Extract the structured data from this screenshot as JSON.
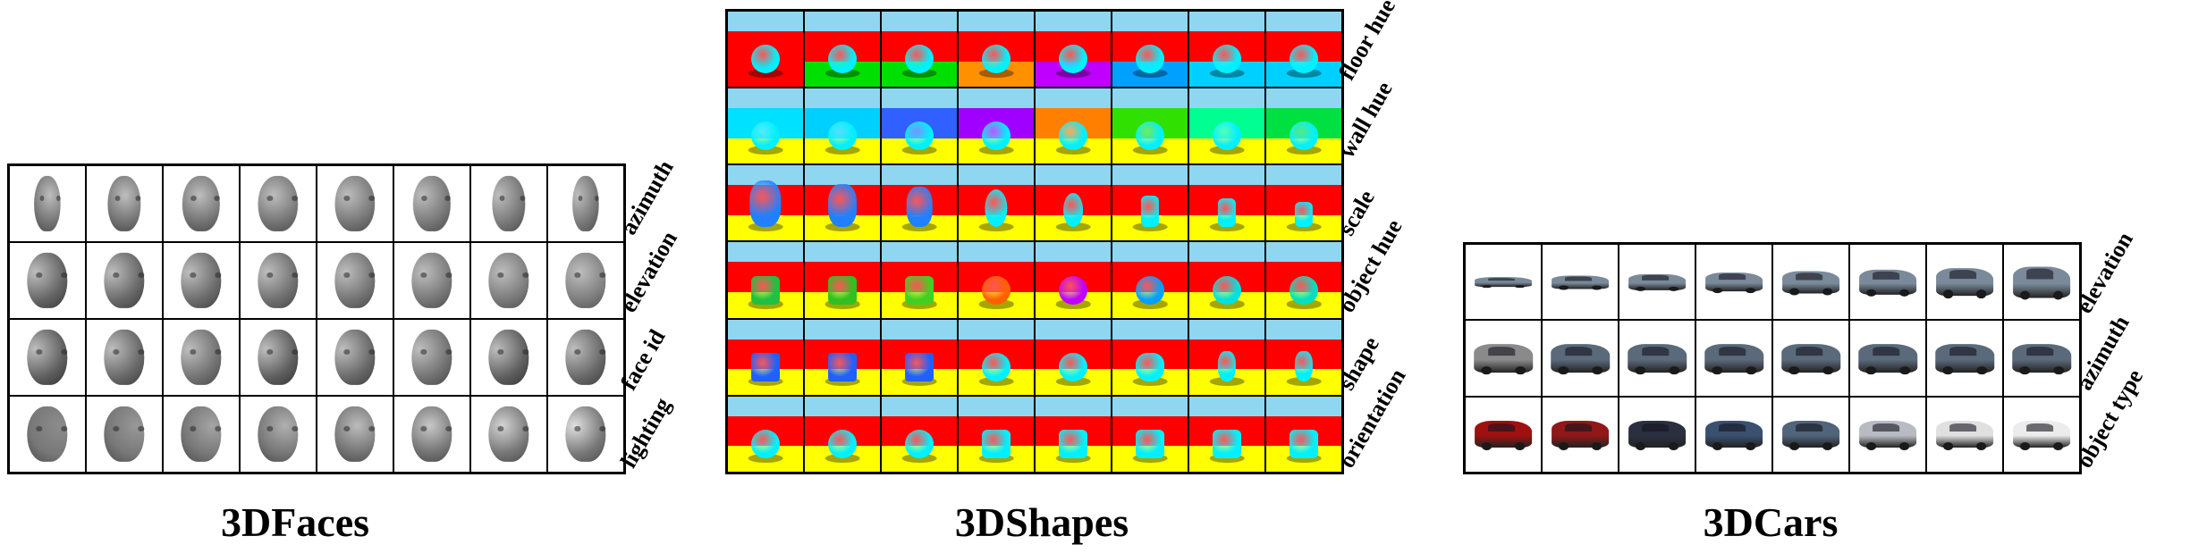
{
  "panels": [
    {
      "id": "faces",
      "caption": "3DFaces",
      "row_labels": [
        "azimuth",
        "elevation",
        "face id",
        "lighting"
      ]
    },
    {
      "id": "shapes",
      "caption": "3DShapes",
      "row_labels": [
        "floor hue",
        "wall hue",
        "scale",
        "object hue",
        "shape",
        "orientation"
      ]
    },
    {
      "id": "cars",
      "caption": "3DCars",
      "row_labels": [
        "elevation",
        "azimuth",
        "object type"
      ]
    }
  ],
  "columns_per_row": 8
}
